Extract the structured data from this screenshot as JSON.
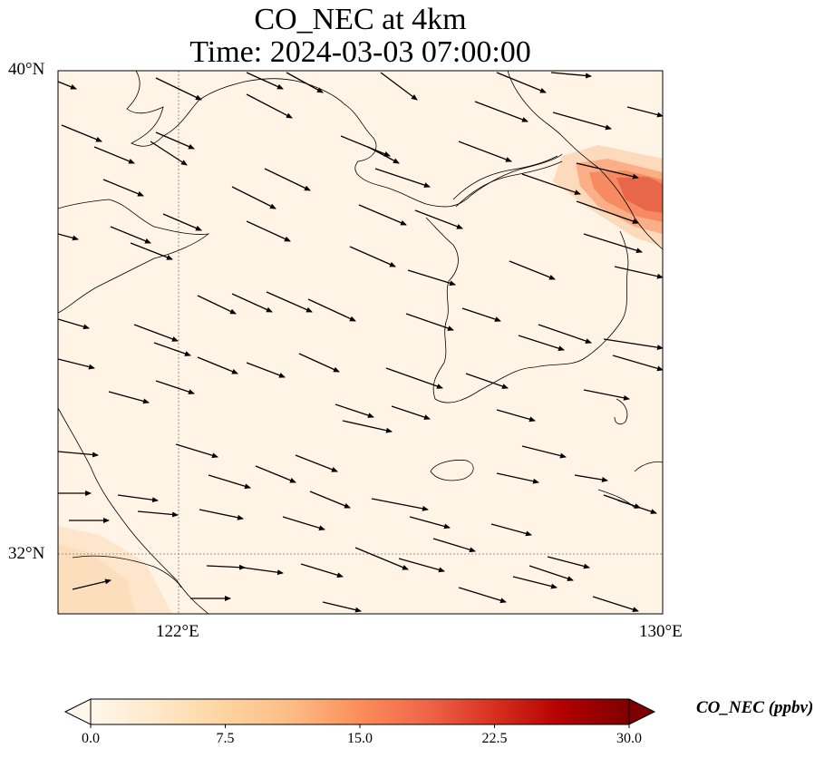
{
  "title": {
    "line1": "CO_NEC at 4km",
    "line2": "Time: 2024-03-03 07:00:00"
  },
  "map": {
    "lat_labels": [
      "40°N",
      "32°N"
    ],
    "lon_labels": [
      "122°E",
      "130°E"
    ],
    "gridlines": true
  },
  "colorbar": {
    "label": "CO_NEC (ppbv)",
    "ticks": [
      "0.0",
      "7.5",
      "15.0",
      "22.5",
      "30.0"
    ],
    "colormap": [
      "#fff7ec",
      "#fee8c8",
      "#fdd49e",
      "#fdbb84",
      "#fc8d59",
      "#ef6548",
      "#d7301f",
      "#b30000",
      "#7f0000"
    ],
    "range": [
      0,
      30
    ],
    "extend": "both"
  }
}
